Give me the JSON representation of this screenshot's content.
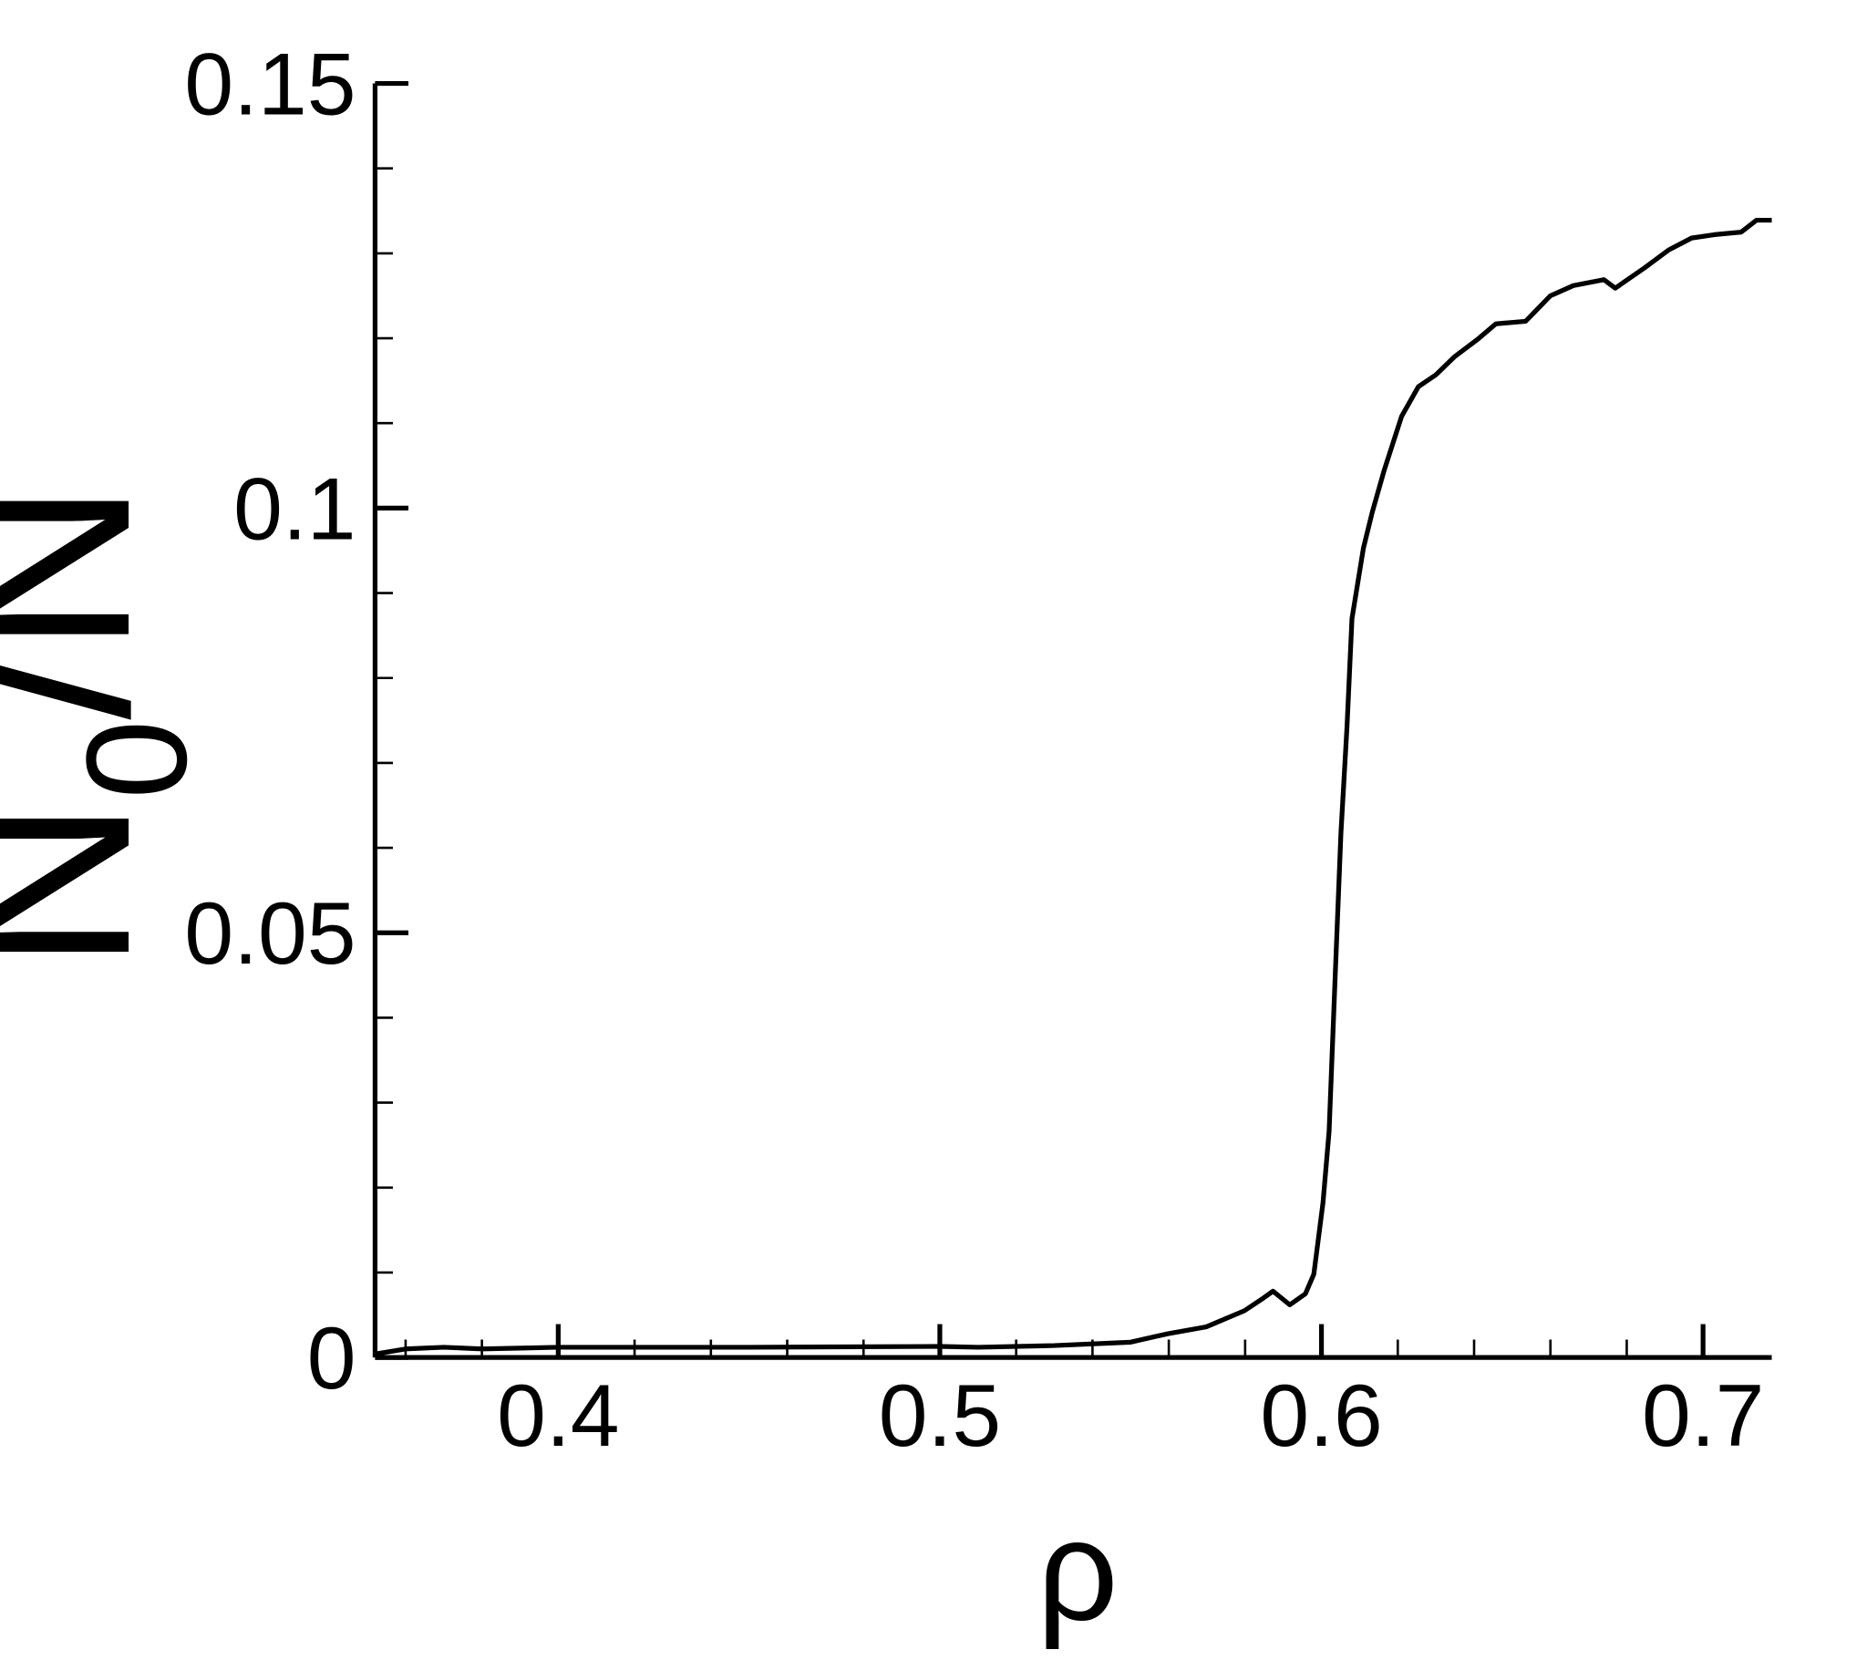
{
  "chart_data": {
    "type": "line",
    "xlabel": "ρ",
    "ylabel_parts": [
      "N",
      "0",
      "/N"
    ],
    "xlim": [
      0.352,
      0.718
    ],
    "ylim": [
      0,
      0.15
    ],
    "xticks": [
      0.4,
      0.5,
      0.6,
      0.7
    ],
    "yticks": [
      0,
      0.05,
      0.1,
      0.15
    ],
    "xminorticks": [
      0.36,
      0.38,
      0.42,
      0.44,
      0.46,
      0.48,
      0.52,
      0.54,
      0.56,
      0.58,
      0.62,
      0.64,
      0.66,
      0.68
    ],
    "yminorticks": [
      0.01,
      0.02,
      0.03,
      0.04,
      0.06,
      0.07,
      0.08,
      0.09,
      0.11,
      0.12,
      0.13,
      0.14
    ],
    "series": [
      {
        "color": "#000000",
        "x": [
          0.352,
          0.36,
          0.37,
          0.38,
          0.39,
          0.4,
          0.45,
          0.5,
          0.51,
          0.53,
          0.55,
          0.5598,
          0.5698,
          0.5798,
          0.5848,
          0.5873,
          0.5917,
          0.5958,
          0.598,
          0.6004,
          0.602,
          0.6036,
          0.6051,
          0.6067,
          0.608,
          0.611,
          0.6133,
          0.6164,
          0.621,
          0.6254,
          0.63,
          0.6348,
          0.641,
          0.6457,
          0.6535,
          0.66,
          0.666,
          0.674,
          0.677,
          0.6847,
          0.691,
          0.697,
          0.703,
          0.71,
          0.714,
          0.718
        ],
        "values": [
          0.0004,
          0.001,
          0.0012,
          0.001,
          0.0011,
          0.0012,
          0.0012,
          0.0013,
          0.0012,
          0.0014,
          0.0018,
          0.0028,
          0.0036,
          0.0055,
          0.007,
          0.0078,
          0.0062,
          0.0075,
          0.0098,
          0.0182,
          0.0266,
          0.0449,
          0.0617,
          0.0743,
          0.087,
          0.0953,
          0.0995,
          0.1044,
          0.1108,
          0.1143,
          0.1157,
          0.1178,
          0.1199,
          0.1217,
          0.122,
          0.125,
          0.1262,
          0.1269,
          0.1259,
          0.1283,
          0.1304,
          0.1318,
          0.1322,
          0.1325,
          0.1339,
          0.1339
        ]
      }
    ]
  }
}
